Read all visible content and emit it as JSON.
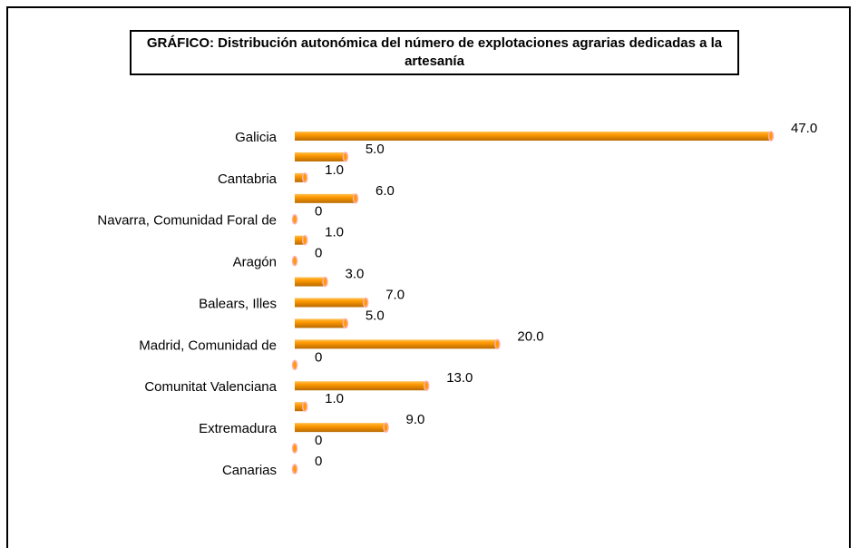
{
  "chart_data": {
    "type": "bar",
    "orientation": "horizontal",
    "title": "GRÁFICO: Distribución autonómica del número de explotaciones agrarias dedicadas a la artesanía",
    "categories": [
      "Galicia",
      null,
      "Cantabria",
      null,
      "Navarra, Comunidad Foral de",
      null,
      "Aragón",
      null,
      "Balears, Illes",
      null,
      "Madrid, Comunidad de",
      null,
      "Comunitat Valenciana",
      null,
      "Extremadura",
      null,
      "Canarias"
    ],
    "values": [
      47,
      5,
      1,
      6,
      0,
      1,
      0,
      3,
      7,
      5,
      20,
      0,
      13,
      1,
      9,
      0,
      0
    ],
    "value_labels": [
      "47.0",
      "5.0",
      "1.0",
      "6.0",
      "0",
      "1.0",
      "0",
      "3.0",
      "7.0",
      "5.0",
      "20.0",
      "0",
      "13.0",
      "1.0",
      "9.0",
      "0",
      "0"
    ],
    "color": "#ff9900"
  }
}
